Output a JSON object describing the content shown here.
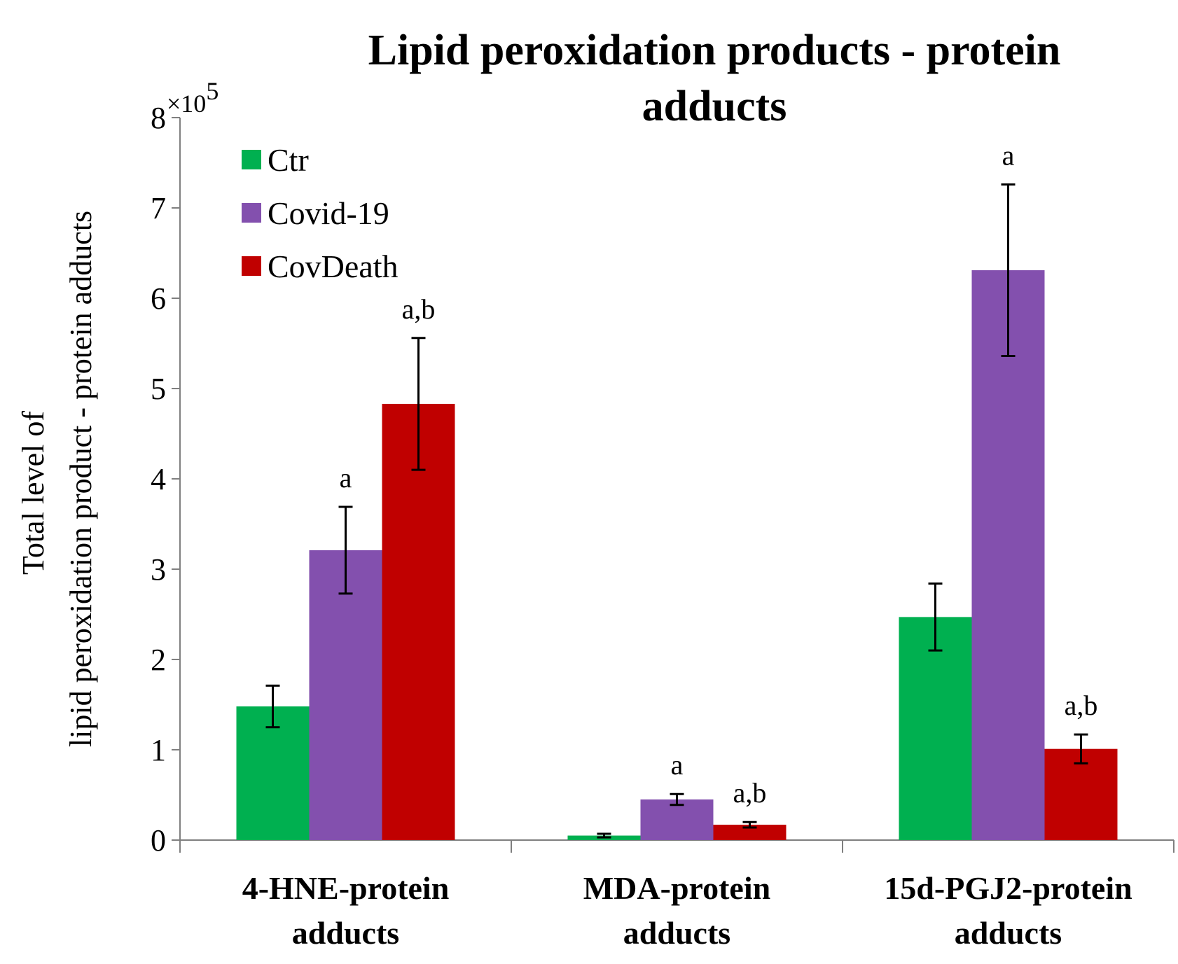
{
  "chart_data": {
    "type": "bar",
    "title_lines": [
      "Lipid peroxidation products - protein",
      "adducts"
    ],
    "ylabel_lines": [
      "Total level of",
      "lipid peroxidation product - protein adducts"
    ],
    "xlabel": "",
    "y_multiplier": "×10",
    "y_multiplier_exponent": "5",
    "ylim": [
      0,
      8
    ],
    "yticks": [
      0,
      1,
      2,
      3,
      4,
      5,
      6,
      7,
      8
    ],
    "grid": false,
    "legend_position": "top-left",
    "categories": [
      {
        "lines": [
          "4-HNE-protein",
          "adducts"
        ]
      },
      {
        "lines": [
          "MDA-protein",
          "adducts"
        ]
      },
      {
        "lines": [
          "15d-PGJ2-protein",
          "adducts"
        ]
      }
    ],
    "series": [
      {
        "name": "Ctr",
        "color": "#00b050",
        "values": [
          1.48,
          0.05,
          2.47
        ],
        "errors": [
          0.23,
          0.02,
          0.37
        ],
        "annotations": [
          "",
          "",
          ""
        ]
      },
      {
        "name": "Covid-19",
        "color": "#8350ae",
        "values": [
          3.21,
          0.45,
          6.31
        ],
        "errors": [
          0.48,
          0.06,
          0.95
        ],
        "annotations": [
          "a",
          "a",
          "a"
        ]
      },
      {
        "name": "CovDeath",
        "color": "#c00000",
        "values": [
          4.83,
          0.17,
          1.01
        ],
        "errors": [
          0.73,
          0.03,
          0.16
        ],
        "annotations": [
          "a,b",
          "a,b",
          "a,b"
        ]
      }
    ]
  }
}
